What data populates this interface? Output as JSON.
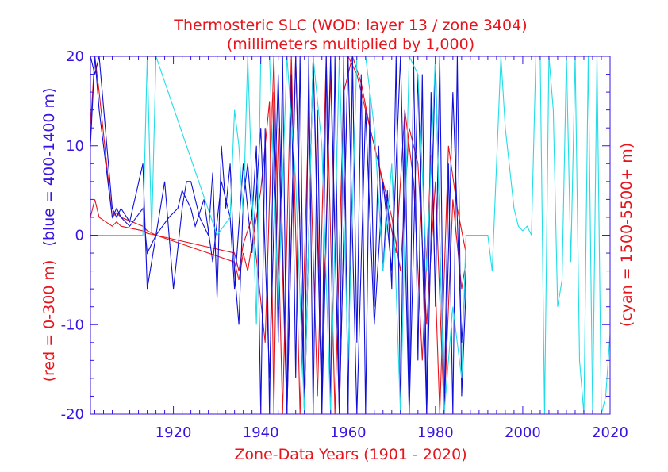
{
  "chart_data": {
    "type": "line",
    "title": "Thermosteric SLC (WOD: layer 13 / zone 3404)",
    "subtitle": "(millimeters multiplied by 1,000)",
    "xlabel": "Zone-Data Years (1901 - 2020)",
    "ylabel_left": {
      "red": "(red = 0-300 m)",
      "blue": "(blue = 400-1400 m)"
    },
    "ylabel_right": "(cyan = 1500-5500+ m)",
    "xlim": [
      1901,
      2020
    ],
    "ylim": [
      -20,
      20
    ],
    "x_ticks": [
      1920,
      1940,
      1960,
      1980,
      2000,
      2020
    ],
    "y_ticks": [
      -20,
      -10,
      0,
      10,
      20
    ],
    "grid": false,
    "colors": {
      "red": "#e8141c",
      "blue": "#1010d8",
      "cyan": "#22dde8",
      "axis": "#3b14e0"
    },
    "series": [
      {
        "color": "#e8141c",
        "x": [
          1901,
          1902,
          1903,
          1906,
          1907,
          1908,
          1913,
          1914,
          1916,
          1934,
          1935,
          1936,
          1937,
          1940,
          1942,
          1943,
          1944,
          1946,
          1948,
          1950,
          1952,
          1954,
          1956,
          1958,
          1960,
          1962,
          1964,
          1966,
          1968,
          1970,
          1972,
          1974,
          1976,
          1978,
          1980,
          1982,
          1984,
          1986,
          1987
        ],
        "y": [
          2,
          4,
          2,
          1,
          1.5,
          1,
          0.5,
          0.2,
          0,
          -3,
          -5,
          -2,
          -4,
          5,
          15,
          -20,
          12,
          -20,
          20,
          -20,
          20,
          -15,
          18,
          -20,
          20,
          18,
          14,
          10,
          6,
          2,
          -4,
          12,
          8,
          -10,
          6,
          -20,
          4,
          -6,
          -3
        ]
      },
      {
        "color": "#e8141c",
        "x": [
          1901,
          1902,
          1903,
          1906,
          1907,
          1908,
          1913,
          1914,
          1916,
          1934,
          1935,
          1936,
          1938,
          1941,
          1943,
          1945,
          1947,
          1949,
          1951,
          1953,
          1955,
          1957,
          1959,
          1961,
          1963,
          1965,
          1967,
          1969,
          1971,
          1973,
          1975,
          1977,
          1979,
          1981,
          1983,
          1985,
          1987
        ],
        "y": [
          12,
          20,
          16,
          2,
          2.5,
          2,
          1,
          0.5,
          0,
          -2,
          -4,
          -1,
          2,
          -12,
          20,
          -20,
          20,
          -20,
          14,
          -18,
          20,
          -20,
          16,
          20,
          17,
          12,
          8,
          3,
          -2,
          14,
          6,
          -14,
          9,
          -20,
          10,
          3,
          -2
        ]
      },
      {
        "color": "#1010d8",
        "x": [
          1901,
          1902,
          1903,
          1906,
          1907,
          1908,
          1910,
          1913,
          1914,
          1916,
          1918,
          1920,
          1922,
          1923,
          1924,
          1926,
          1928,
          1929,
          1930,
          1931,
          1932,
          1933,
          1934,
          1935,
          1936,
          1937,
          1938,
          1939,
          1940,
          1941,
          1942,
          1943,
          1944,
          1945,
          1946,
          1947,
          1948,
          1949,
          1950,
          1951,
          1952,
          1953,
          1954,
          1955,
          1956,
          1957,
          1958,
          1959,
          1960,
          1961,
          1962,
          1963,
          1964,
          1965,
          1966,
          1967,
          1968,
          1969,
          1970,
          1971,
          1972,
          1973,
          1974,
          1975,
          1976,
          1977,
          1978,
          1979,
          1980,
          1981,
          1982,
          1983,
          1984,
          1985,
          1986,
          1987
        ],
        "y": [
          20,
          18,
          20,
          3,
          2,
          3,
          1.5,
          8,
          -6,
          0,
          6,
          -6,
          3,
          6,
          6,
          2,
          0,
          7,
          -7,
          10,
          3,
          8,
          -4,
          -10,
          4,
          8,
          2,
          10,
          -20,
          12,
          -20,
          16,
          -12,
          20,
          -20,
          18,
          -16,
          20,
          -20,
          20,
          -20,
          14,
          -18,
          20,
          -20,
          20,
          -20,
          20,
          -20,
          20,
          -12,
          18,
          -20,
          16,
          -8,
          10,
          -4,
          5,
          -6,
          20,
          -20,
          14,
          -20,
          20,
          -14,
          18,
          -20,
          16,
          -8,
          20,
          -20,
          8,
          -20,
          20,
          -18,
          -6
        ]
      },
      {
        "color": "#1010d8",
        "x": [
          1901,
          1902,
          1903,
          1906,
          1907,
          1908,
          1910,
          1913,
          1914,
          1916,
          1919,
          1921,
          1922,
          1924,
          1925,
          1927,
          1929,
          1931,
          1933,
          1934,
          1936,
          1938,
          1940,
          1942,
          1944,
          1946,
          1948,
          1950,
          1952,
          1954,
          1956,
          1958,
          1960,
          1962,
          1964,
          1966,
          1968,
          1970,
          1972,
          1974,
          1976,
          1978,
          1980,
          1982,
          1984,
          1986,
          1987
        ],
        "y": [
          10,
          20,
          14,
          2,
          3,
          2,
          1,
          3,
          -2,
          0,
          2,
          3,
          5,
          3,
          1,
          4,
          -3,
          6,
          2,
          -6,
          8,
          -2,
          12,
          -16,
          18,
          -20,
          20,
          -20,
          20,
          -20,
          20,
          -20,
          20,
          -20,
          14,
          -10,
          6,
          -4,
          20,
          -20,
          18,
          -20,
          20,
          -20,
          16,
          -12,
          -4
        ]
      },
      {
        "color": "#22dde8",
        "x": [
          1901,
          1906,
          1913,
          1914,
          1915,
          1916,
          1930,
          1933,
          1934,
          1935,
          1936,
          1937,
          1939,
          1940,
          1941,
          1942,
          1944,
          1946,
          1948,
          1950,
          1952,
          1954,
          1956,
          1958,
          1960,
          1962,
          1964,
          1966,
          1968,
          1970,
          1972,
          1974,
          1976,
          1978,
          1980,
          1982,
          1984,
          1986,
          1987,
          1988,
          1992,
          1993,
          1995,
          1996,
          1998,
          1999,
          2000,
          2001,
          2002,
          2003,
          2004,
          2005,
          2006,
          2007,
          2008,
          2009,
          2010,
          2011,
          2012,
          2013,
          2014,
          2015,
          2016,
          2017,
          2018,
          2019,
          2020
        ],
        "y": [
          0,
          0,
          0,
          20,
          0,
          20,
          0,
          2,
          14,
          10,
          2,
          20,
          -10,
          20,
          20,
          20,
          -8,
          20,
          6,
          -20,
          20,
          10,
          -20,
          20,
          -14,
          20,
          20,
          12,
          -4,
          8,
          -20,
          20,
          18,
          -4,
          20,
          -20,
          -8,
          -16,
          0,
          0,
          0,
          -4,
          20,
          12,
          3,
          1,
          0.5,
          1,
          0,
          20,
          20,
          -20,
          20,
          14,
          -8,
          -5,
          20,
          -3,
          20,
          -14,
          -20,
          20,
          -20,
          20,
          -20,
          -18,
          -11
        ]
      }
    ]
  }
}
